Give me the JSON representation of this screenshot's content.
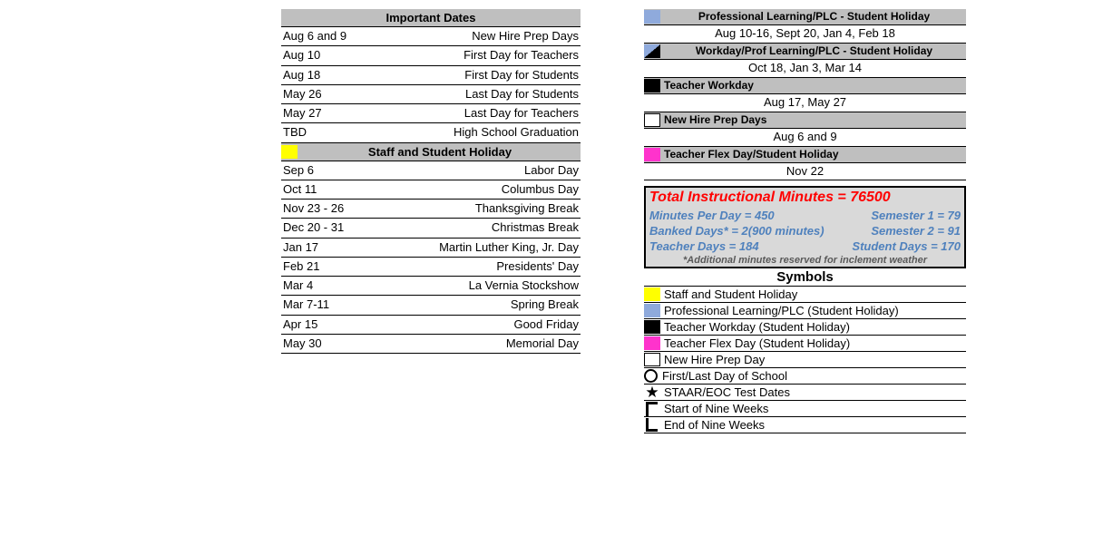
{
  "colors": {
    "grey_header": "#bfbfbf",
    "yellow": "#ffff00",
    "blue": "#8faadc",
    "black": "#000000",
    "white": "#ffffff",
    "magenta": "#ff33cc",
    "info_bg": "#d9d9d9",
    "info_title": "#ff0000",
    "info_blue": "#4f81bd",
    "info_grey": "#595959"
  },
  "left": {
    "dates_header": "Important Dates",
    "dates": [
      {
        "l": "Aug 6 and 9",
        "r": "New Hire Prep Days"
      },
      {
        "l": "Aug 10",
        "r": "First Day for Teachers"
      },
      {
        "l": "Aug 18",
        "r": "First Day for Students"
      },
      {
        "l": "May 26",
        "r": "Last Day for Students"
      },
      {
        "l": "May 27",
        "r": "Last Day for Teachers"
      },
      {
        "l": "TBD",
        "r": "High School Graduation"
      }
    ],
    "holiday_header": "Staff and Student Holiday",
    "holidays": [
      {
        "l": "Sep 6",
        "r": "Labor Day"
      },
      {
        "l": "Oct 11",
        "r": "Columbus Day"
      },
      {
        "l": "Nov 23 - 26",
        "r": "Thanksgiving Break"
      },
      {
        "l": "Dec 20 - 31",
        "r": "Christmas Break"
      },
      {
        "l": "Jan 17",
        "r": "Martin Luther King, Jr. Day"
      },
      {
        "l": "Feb 21",
        "r": "Presidents' Day"
      },
      {
        "l": "Mar 4",
        "r": "La Vernia Stockshow"
      },
      {
        "l": "Mar 7-11",
        "r": "Spring Break"
      },
      {
        "l": "Apr 15",
        "r": "Good Friday"
      },
      {
        "l": "May 30",
        "r": "Memorial Day"
      }
    ]
  },
  "right": {
    "categories": [
      {
        "swatch": "blue",
        "title": "Professional Learning/PLC - Student Holiday",
        "line": "Aug 10-16, Sept 20, Jan 4, Feb 18",
        "align": "center"
      },
      {
        "swatch": "tri",
        "title": "Workday/Prof Learning/PLC - Student Holiday",
        "line": "Oct 18, Jan 3, Mar 14",
        "align": "center"
      },
      {
        "swatch": "black",
        "title": "Teacher Workday",
        "line": "Aug 17, May 27",
        "align": "left"
      },
      {
        "swatch": "white",
        "title": "New Hire Prep Days",
        "line": "Aug 6 and 9",
        "align": "left"
      },
      {
        "swatch": "magenta",
        "title": "Teacher Flex Day/Student Holiday",
        "line": "Nov 22",
        "align": "left"
      }
    ],
    "info": {
      "title": "Total Instructional Minutes = 76500",
      "rows": [
        {
          "l": "Minutes Per Day = 450",
          "r": "Semester 1 = 79"
        },
        {
          "l": "Banked Days* = 2(900 minutes)",
          "r": "Semester 2 = 91"
        },
        {
          "l": "Teacher Days = 184",
          "r": "Student Days = 170"
        }
      ],
      "footnote": "*Additional minutes reserved for inclement weather"
    },
    "symbols_header": "Symbols",
    "symbols": [
      {
        "swatch": "yellow",
        "label": "Staff and Student Holiday"
      },
      {
        "swatch": "blue",
        "label": "Professional Learning/PLC (Student Holiday)"
      },
      {
        "swatch": "black",
        "label": "Teacher Workday (Student Holiday)"
      },
      {
        "swatch": "magenta",
        "label": "Teacher Flex Day (Student Holiday)"
      },
      {
        "swatch": "white",
        "label": "New Hire Prep Day"
      },
      {
        "swatch": "circle",
        "label": "First/Last Day of School"
      },
      {
        "swatch": "star",
        "label": "STAAR/EOC Test Dates"
      },
      {
        "swatch": "upL",
        "label": "Start of Nine Weeks"
      },
      {
        "swatch": "downL",
        "label": "End of Nine Weeks"
      }
    ]
  }
}
